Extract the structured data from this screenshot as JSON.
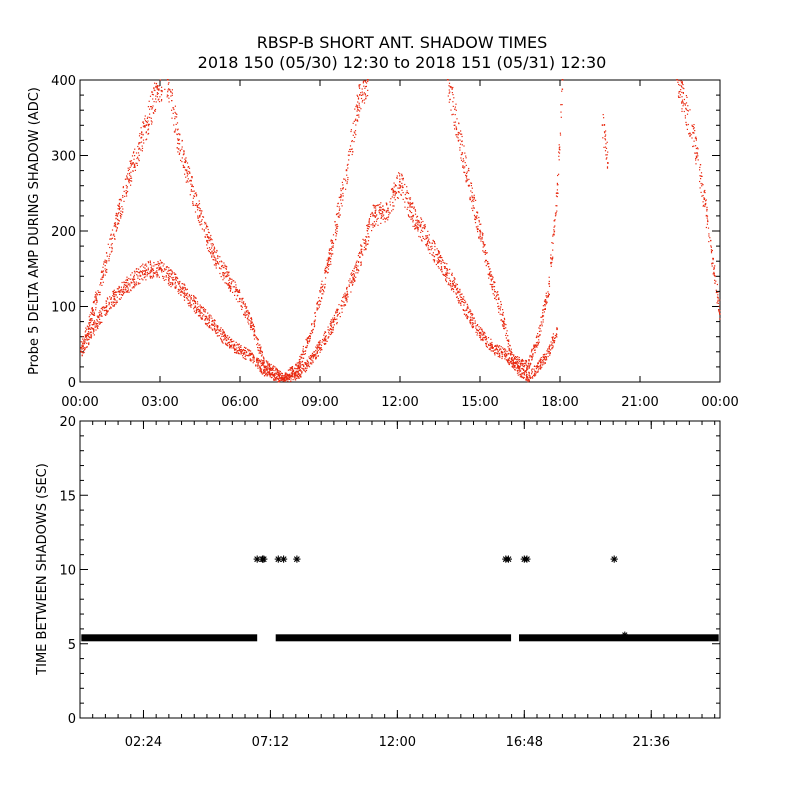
{
  "title_line1": "RBSP-B SHORT ANT. SHADOW TIMES",
  "title_line2": "2018 150 (05/30) 12:30 to 2018 151 (05/31) 12:30",
  "colors": {
    "points": "#e8280f",
    "marks": "#000000",
    "axis": "#000000"
  },
  "chart_data": [
    {
      "type": "scatter",
      "ylabel": "Probe 5 DELTA AMP DURING SHADOW (ADC)",
      "xlim": [
        0,
        24
      ],
      "ylim": [
        0,
        400
      ],
      "x_tick_labels": [
        "00:00",
        "03:00",
        "06:00",
        "09:00",
        "12:00",
        "15:00",
        "18:00",
        "21:00",
        "00:00"
      ],
      "y_tick_labels": [
        "0",
        "100",
        "200",
        "300",
        "400"
      ],
      "series": [
        {
          "band": "upper",
          "points": [
            [
              0.05,
              45
            ],
            [
              0.5,
              95
            ],
            [
              1.0,
              160
            ],
            [
              1.5,
              230
            ],
            [
              2.0,
              290
            ],
            [
              2.5,
              340
            ],
            [
              2.9,
              390
            ],
            [
              3.3,
              400
            ],
            [
              3.7,
              320
            ],
            [
              4.0,
              280
            ],
            [
              4.5,
              220
            ],
            [
              5.0,
              170
            ],
            [
              5.5,
              140
            ],
            [
              6.0,
              110
            ],
            [
              6.5,
              70
            ],
            [
              6.9,
              25
            ],
            [
              7.6,
              5
            ],
            [
              8.2,
              20
            ],
            [
              8.8,
              80
            ],
            [
              9.4,
              170
            ],
            [
              10.0,
              280
            ],
            [
              10.5,
              380
            ],
            [
              10.8,
              400
            ],
            [
              13.8,
              400
            ],
            [
              14.2,
              330
            ],
            [
              14.6,
              260
            ],
            [
              15.0,
              200
            ],
            [
              15.4,
              140
            ],
            [
              15.9,
              80
            ],
            [
              16.2,
              30
            ],
            [
              16.8,
              20
            ],
            [
              17.2,
              60
            ],
            [
              17.6,
              130
            ],
            [
              17.9,
              250
            ],
            [
              18.1,
              400
            ],
            [
              19.6,
              340
            ],
            [
              19.8,
              290
            ],
            [
              22.4,
              400
            ],
            [
              23.0,
              330
            ],
            [
              23.5,
              220
            ],
            [
              24.0,
              90
            ]
          ]
        },
        {
          "band": "lower",
          "points": [
            [
              0.05,
              40
            ],
            [
              0.5,
              70
            ],
            [
              1.0,
              100
            ],
            [
              1.5,
              120
            ],
            [
              2.0,
              135
            ],
            [
              2.5,
              148
            ],
            [
              3.0,
              150
            ],
            [
              3.5,
              135
            ],
            [
              4.0,
              115
            ],
            [
              4.5,
              95
            ],
            [
              5.0,
              75
            ],
            [
              5.5,
              55
            ],
            [
              6.0,
              42
            ],
            [
              6.5,
              32
            ],
            [
              6.9,
              15
            ],
            [
              7.6,
              3
            ],
            [
              8.2,
              10
            ],
            [
              8.8,
              35
            ],
            [
              9.4,
              70
            ],
            [
              10.0,
              115
            ],
            [
              10.5,
              165
            ],
            [
              11.0,
              220
            ],
            [
              11.5,
              225
            ],
            [
              12.0,
              265
            ],
            [
              12.5,
              220
            ],
            [
              13.0,
              190
            ],
            [
              13.5,
              160
            ],
            [
              14.0,
              130
            ],
            [
              14.5,
              95
            ],
            [
              15.0,
              65
            ],
            [
              15.5,
              45
            ],
            [
              16.0,
              35
            ],
            [
              16.3,
              20
            ],
            [
              16.8,
              5
            ],
            [
              17.2,
              20
            ],
            [
              17.6,
              40
            ],
            [
              17.9,
              70
            ]
          ]
        }
      ]
    },
    {
      "type": "scatter",
      "ylabel": "TIME BETWEEN SHADOWS (SEC)",
      "xlim": [
        0,
        24.2
      ],
      "ylim": [
        0,
        20
      ],
      "x_tick_labels": [
        "02:24",
        "07:12",
        "12:00",
        "16:48",
        "21:36"
      ],
      "x_tick_values": [
        2.4,
        7.2,
        12.0,
        16.8,
        21.6
      ],
      "y_tick_labels": [
        "0",
        "5",
        "10",
        "15",
        "20"
      ],
      "baseline_value": 5.4,
      "baseline_segments": [
        [
          0.05,
          6.7
        ],
        [
          7.4,
          16.3
        ],
        [
          16.6,
          24.15
        ]
      ],
      "high_value": 10.7,
      "high_points": [
        6.7,
        6.9,
        6.95,
        7.5,
        7.7,
        8.2,
        16.1,
        16.2,
        16.8,
        16.9,
        20.2
      ],
      "outlier_points": [
        [
          20.6,
          5.6
        ]
      ]
    }
  ]
}
